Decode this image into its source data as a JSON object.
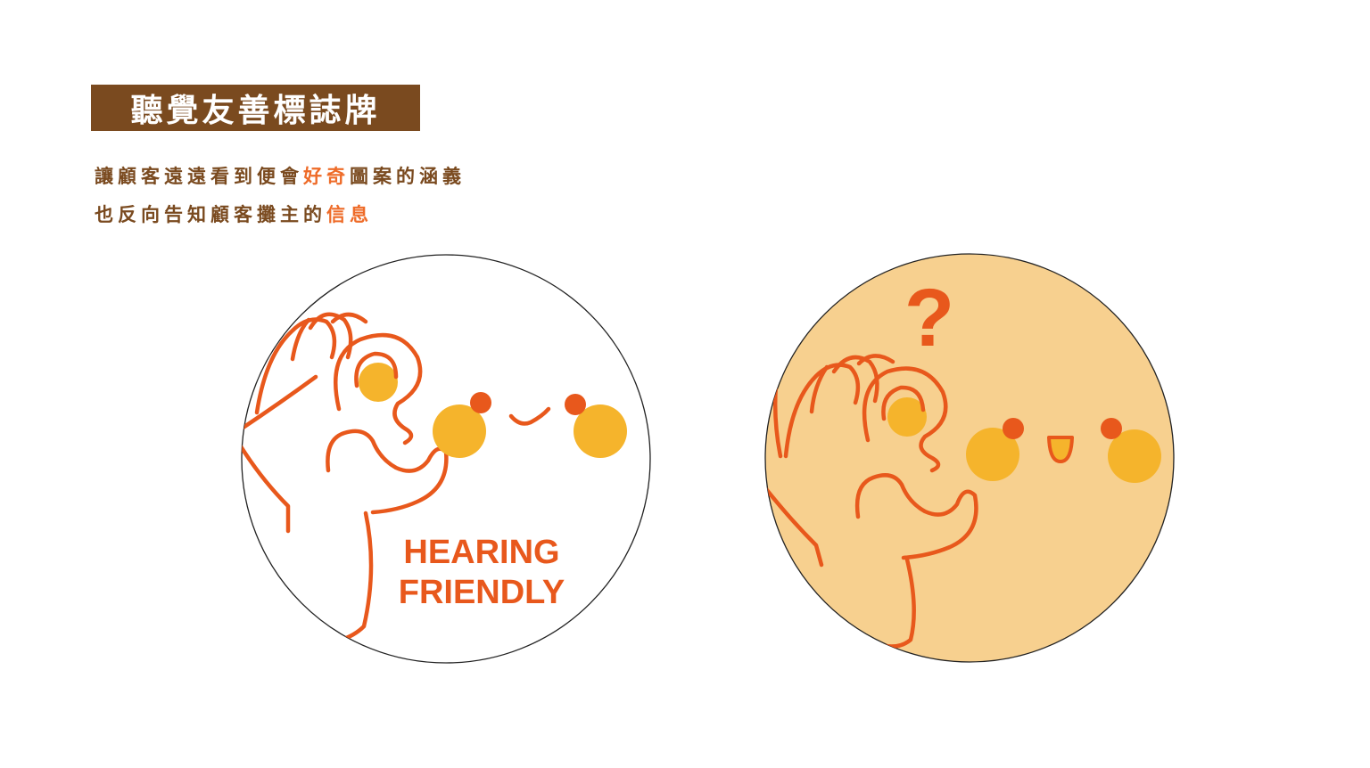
{
  "title": "聽覺友善標誌牌",
  "subtitle": {
    "line1": {
      "before": "讓顧客遠遠看到便會",
      "highlight": "好奇",
      "after": "圖案的涵義"
    },
    "line2": {
      "before": "也反向告知顧客攤主的",
      "highlight": "信息"
    }
  },
  "badge_front": {
    "text_line1": "HEARING",
    "text_line2": "FRIENDLY",
    "background": "#ffffff"
  },
  "badge_back": {
    "question_mark": "?",
    "background": "#f7d08f"
  },
  "colors": {
    "brand_brown": "#7a4a1f",
    "accent_orange": "#ee6b28",
    "hand_orange": "#e8581c",
    "cheek_yellow": "#f5b42c",
    "outline": "#222222"
  },
  "icons": [
    "hand-ear-icon",
    "face-icon",
    "question-mark-icon"
  ]
}
